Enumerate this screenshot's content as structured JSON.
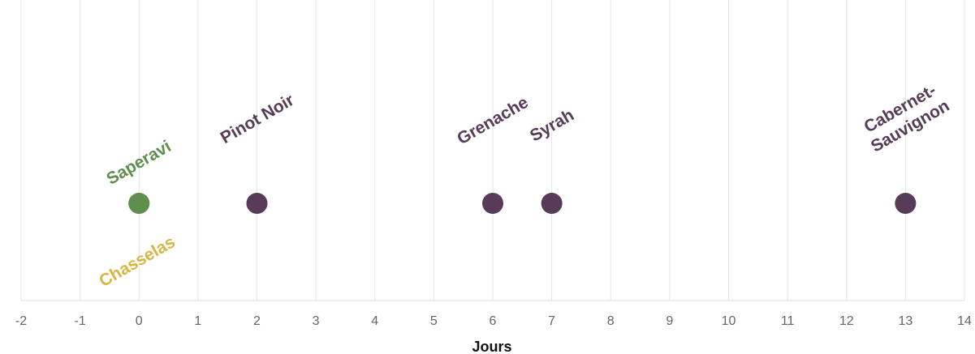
{
  "chart_data": {
    "type": "scatter",
    "x_label": "Jours",
    "xlim": [
      -2,
      14
    ],
    "xticks": [
      -2,
      -1,
      0,
      1,
      2,
      3,
      4,
      5,
      6,
      7,
      8,
      9,
      10,
      11,
      12,
      13,
      14
    ],
    "grid": true,
    "series": [
      {
        "name": "Chasselas",
        "color": "#d6b743",
        "x": [
          0
        ],
        "label_position": "below"
      },
      {
        "name": "Saperavi",
        "color": "#5e8f4f",
        "x": [
          0
        ],
        "label_position": "above"
      },
      {
        "name": "Pinot Noir",
        "color": "#583b58",
        "x": [
          2
        ],
        "label_position": "above"
      },
      {
        "name": "Grenache",
        "color": "#583b58",
        "x": [
          6
        ],
        "label_position": "above"
      },
      {
        "name": "Syrah",
        "color": "#583b58",
        "x": [
          7
        ],
        "label_position": "above"
      },
      {
        "name": "Cabernet-Sauvignon",
        "color": "#583b58",
        "x": [
          13
        ],
        "label_position": "above"
      }
    ]
  }
}
